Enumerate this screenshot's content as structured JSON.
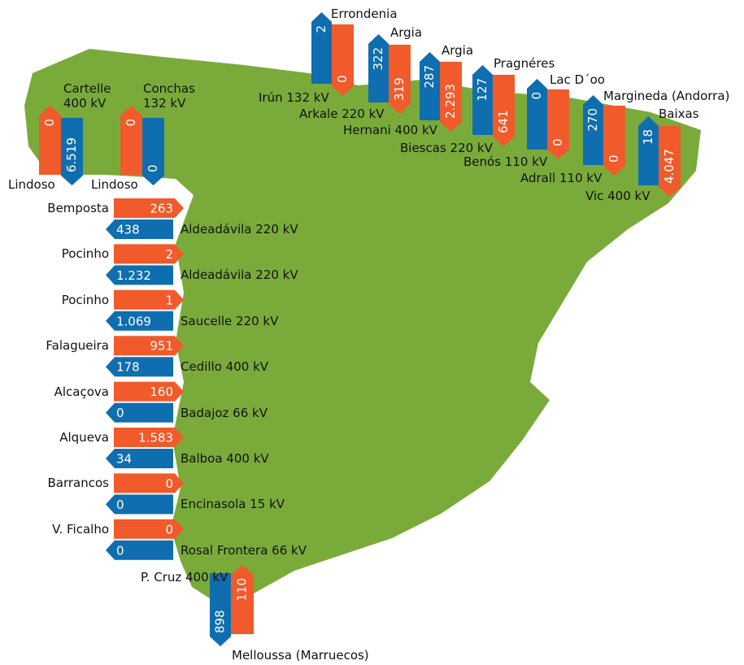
{
  "vertical_links": [
    {
      "top_label": "Cartelle 400 kV",
      "bottom_label": "Lindoso",
      "red_value": "0",
      "blue_value": "6.519"
    },
    {
      "top_label": "Conchas 132 kV",
      "bottom_label": "Lindoso",
      "red_value": "0",
      "blue_value": "0"
    },
    {
      "top_label": "Errondenia",
      "bottom_label": "Irún 132 kV",
      "blue_value": "2",
      "red_value": "0"
    },
    {
      "top_label": "Argia",
      "bottom_label": "Arkale 220 kV",
      "blue_value": "322",
      "red_value": "319"
    },
    {
      "top_label": "Argia",
      "bottom_label": "Hernani 400 kV",
      "blue_value": "287",
      "red_value": "2.293"
    },
    {
      "top_label": "Pragnéres",
      "bottom_label": "Biescas 220 kV",
      "blue_value": "127",
      "red_value": "641"
    },
    {
      "top_label": "Lac D´oo",
      "bottom_label": "Benós 110 kV",
      "blue_value": "0",
      "red_value": "0"
    },
    {
      "top_label": "Margineda (Andorra)",
      "bottom_label": "Adrall 110 kV",
      "blue_value": "270",
      "red_value": "0"
    },
    {
      "top_label": "Baixas",
      "bottom_label": "Vic 400 kV",
      "blue_value": "18",
      "red_value": "4.047"
    }
  ],
  "horizontal_links": [
    {
      "portugal": "Bemposta",
      "spain": "Aldeadávila 220 kV",
      "red_value": "263",
      "blue_value": "438"
    },
    {
      "portugal": "Pocinho",
      "spain": "Aldeadávila 220 kV",
      "red_value": "2",
      "blue_value": "1.232"
    },
    {
      "portugal": "Pocinho",
      "spain": "Saucelle 220 kV",
      "red_value": "1",
      "blue_value": "1.069"
    },
    {
      "portugal": "Falagueira",
      "spain": "Cedillo 400 kV",
      "red_value": "951",
      "blue_value": "178"
    },
    {
      "portugal": "Alcaçova",
      "spain": "Badajoz 66 kV",
      "red_value": "160",
      "blue_value": "0"
    },
    {
      "portugal": "Alqueva",
      "spain": "Balboa 400 kV",
      "red_value": "1.583",
      "blue_value": "34"
    },
    {
      "portugal": "Barrancos",
      "spain": "Encinasola 15 kV",
      "red_value": "0",
      "blue_value": "0"
    },
    {
      "portugal": "V. Ficalho",
      "spain": "Rosal Frontera 66 kV",
      "red_value": "0",
      "blue_value": "0"
    }
  ],
  "morocco_link": {
    "top_label": "P. Cruz 400 kV",
    "bottom_label": "Melloussa (Marruecos)",
    "blue_value": "898",
    "red_value": "110"
  }
}
